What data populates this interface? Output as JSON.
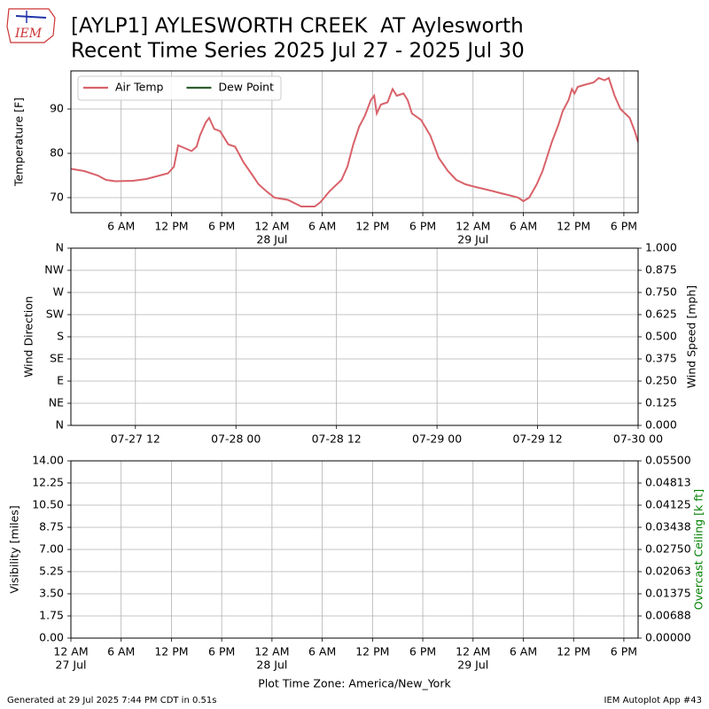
{
  "header": {
    "logo_text": "IEM",
    "title": "[AYLP1] AYLESWORTH CREEK  AT Aylesworth",
    "subtitle": "Recent Time Series 2025 Jul 27 - 2025 Jul 30"
  },
  "chart_data": [
    {
      "type": "line",
      "ylabel": "Temperature [F]",
      "xlim": [
        0,
        67.7
      ],
      "ylim": [
        66.6,
        98.6
      ],
      "yticks": [
        70,
        80,
        90
      ],
      "grid": true,
      "legend": "upper left",
      "xticks": [
        {
          "value": 6,
          "label": "6 AM"
        },
        {
          "value": 12,
          "label": "12 PM"
        },
        {
          "value": 18,
          "label": "6 PM"
        },
        {
          "value": 24,
          "label": "12 AM",
          "date": "28 Jul"
        },
        {
          "value": 30,
          "label": "6 AM"
        },
        {
          "value": 36,
          "label": "12 PM"
        },
        {
          "value": 42,
          "label": "6 PM"
        },
        {
          "value": 48,
          "label": "12 AM",
          "date": "29 Jul"
        },
        {
          "value": 54,
          "label": "6 AM"
        },
        {
          "value": 60,
          "label": "12 PM"
        },
        {
          "value": 66,
          "label": "6 PM"
        }
      ],
      "series": [
        {
          "name": "Air Temp",
          "color": "#d9626a",
          "x": [
            0,
            1.6,
            3.2,
            4.2,
            5.3,
            7.4,
            9.0,
            10.6,
            11.6,
            12.3,
            12.8,
            13.8,
            14.4,
            15.0,
            15.4,
            16.1,
            16.5,
            17.1,
            17.8,
            18.8,
            19.6,
            20.6,
            21.7,
            22.4,
            23.3,
            24.3,
            25.9,
            27.5,
            29.1,
            29.8,
            30.9,
            32.3,
            33.0,
            33.7,
            34.4,
            35.1,
            35.8,
            36.2,
            36.5,
            37.0,
            37.8,
            38.4,
            38.9,
            39.7,
            40.2,
            40.7,
            41.8,
            42.9,
            43.9,
            45.0,
            46.0,
            47.1,
            48.1,
            49.2,
            50.3,
            51.3,
            52.4,
            53.4,
            54.0,
            54.7,
            55.6,
            56.3,
            56.8,
            57.4,
            58.2,
            58.7,
            59.4,
            59.8,
            60.1,
            60.5,
            61.4,
            62.4,
            63.0,
            63.7,
            64.2,
            64.9,
            65.6,
            66.7,
            67.3,
            67.7
          ],
          "values": [
            76.5,
            76,
            75,
            74,
            73.7,
            73.8,
            74.2,
            75,
            75.5,
            77,
            81.8,
            81,
            80.5,
            81.5,
            84,
            87,
            88,
            85.5,
            85,
            82,
            81.5,
            78,
            75,
            73,
            71.5,
            70,
            69.5,
            68,
            68,
            69,
            71.5,
            74,
            77,
            82,
            86,
            88.5,
            92,
            93,
            89,
            91,
            91.5,
            94.5,
            93,
            93.5,
            92,
            89,
            87.5,
            84,
            79,
            76,
            74,
            73,
            72.5,
            72,
            71.5,
            71,
            70.5,
            70,
            69.2,
            70,
            73,
            76,
            79,
            82.5,
            86.5,
            89.5,
            92,
            94.5,
            93.5,
            95,
            95.5,
            96,
            97,
            96.5,
            97,
            93,
            90,
            88,
            85,
            82.5
          ]
        },
        {
          "name": "Dew Point",
          "color": "#2e5e2e",
          "x": [],
          "values": []
        }
      ]
    },
    {
      "type": "line",
      "ylabel": "Wind Direction",
      "y2label": "Wind Speed [mph]",
      "xlim": [
        4.3,
        72
      ],
      "ylim": [
        0,
        360
      ],
      "y2lim": [
        0,
        1
      ],
      "grid": true,
      "yticks": [
        {
          "value": 0,
          "label": "N"
        },
        {
          "value": 45,
          "label": "NE"
        },
        {
          "value": 90,
          "label": "E"
        },
        {
          "value": 135,
          "label": "SE"
        },
        {
          "value": 180,
          "label": "S"
        },
        {
          "value": 225,
          "label": "SW"
        },
        {
          "value": 270,
          "label": "W"
        },
        {
          "value": 315,
          "label": "NW"
        },
        {
          "value": 360,
          "label": "N"
        }
      ],
      "y2ticks": [
        {
          "value": 0,
          "label": "0.000"
        },
        0.125,
        {
          "value": 0.25,
          "label": "0.250"
        },
        0.375,
        {
          "value": 0.5,
          "label": "0.500"
        },
        0.625,
        {
          "value": 0.75,
          "label": "0.750"
        },
        0.875,
        {
          "value": 1,
          "label": "1.000"
        }
      ],
      "xticks": [
        {
          "value": 12,
          "label": "07-27 12"
        },
        {
          "value": 24,
          "label": "07-28 00"
        },
        {
          "value": 36,
          "label": "07-28 12"
        },
        {
          "value": 48,
          "label": "07-29 00"
        },
        {
          "value": 60,
          "label": "07-29 12"
        },
        {
          "value": 72,
          "label": "07-30 00"
        }
      ],
      "series": []
    },
    {
      "type": "line",
      "ylabel": "Visibility [miles]",
      "y2label": "Overcast Ceiling [k ft]",
      "y2label_color": "green",
      "xlabel": "Plot Time Zone: America/New_York",
      "xlim": [
        0,
        67.7
      ],
      "ylim": [
        0,
        14
      ],
      "y2lim": [
        0,
        0.055
      ],
      "grid": true,
      "yticks": [
        {
          "value": 0,
          "label": "0.00"
        },
        1.75,
        {
          "value": 3.5,
          "label": "3.50"
        },
        5.25,
        {
          "value": 7,
          "label": "7.00"
        },
        8.75,
        {
          "value": 10.5,
          "label": "10.50"
        },
        12.25,
        {
          "value": 14,
          "label": "14.00"
        }
      ],
      "y2ticks": [
        {
          "value": 0,
          "label": "0.00000"
        },
        {
          "value": 0.006875,
          "label": "0.00688"
        },
        {
          "value": 0.01375,
          "label": "0.01375"
        },
        {
          "value": 0.020625,
          "label": "0.02063"
        },
        {
          "value": 0.0275,
          "label": "0.02750"
        },
        {
          "value": 0.034375,
          "label": "0.03438"
        },
        {
          "value": 0.04125,
          "label": "0.04125"
        },
        {
          "value": 0.048125,
          "label": "0.04813"
        },
        {
          "value": 0.055,
          "label": "0.05500"
        }
      ],
      "xticks": [
        {
          "value": 0,
          "label": "12 AM",
          "date": "27 Jul"
        },
        {
          "value": 6,
          "label": "6 AM"
        },
        {
          "value": 12,
          "label": "12 PM"
        },
        {
          "value": 18,
          "label": "6 PM"
        },
        {
          "value": 24,
          "label": "12 AM",
          "date": "28 Jul"
        },
        {
          "value": 30,
          "label": "6 AM"
        },
        {
          "value": 36,
          "label": "12 PM"
        },
        {
          "value": 42,
          "label": "6 PM"
        },
        {
          "value": 48,
          "label": "12 AM",
          "date": "29 Jul"
        },
        {
          "value": 54,
          "label": "6 AM"
        },
        {
          "value": 60,
          "label": "12 PM"
        },
        {
          "value": 66,
          "label": "6 PM"
        }
      ],
      "series": []
    }
  ],
  "footer": {
    "left": "Generated at 29 Jul 2025 7:44 PM CDT in 0.51s",
    "right": "IEM Autoplot App #43"
  }
}
